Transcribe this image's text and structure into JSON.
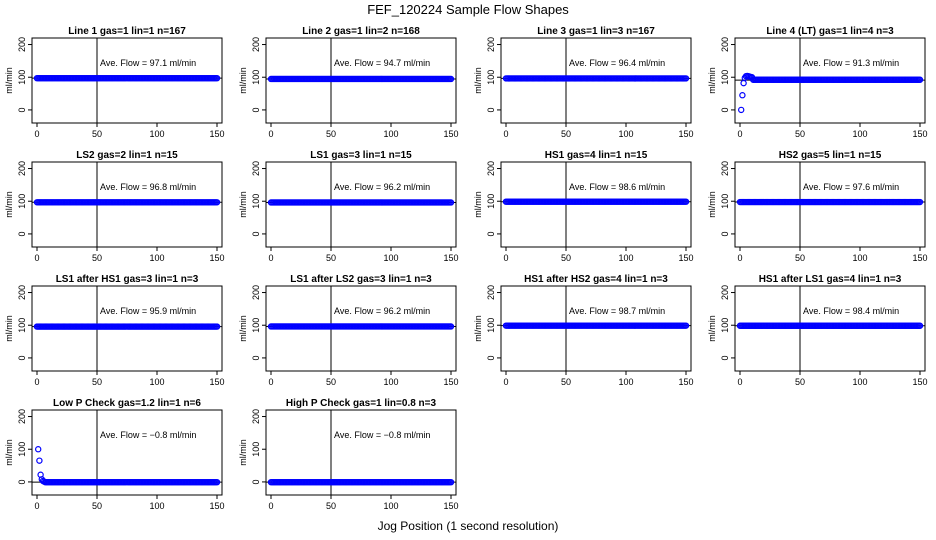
{
  "figure": {
    "title": "FEF_120224  Sample Flow Shapes",
    "xlabel": "Jog Position (1 second resolution)"
  },
  "chart_data": [
    {
      "type": "scatter",
      "title": "Line 1 gas=1 lin=1 n=167",
      "annotation": "Ave. Flow = 97.1  ml/min",
      "ylabel": "ml/min",
      "xlim": [
        0,
        150
      ],
      "ylim": [
        -40,
        220
      ],
      "xticks": [
        0,
        50,
        100,
        150
      ],
      "yticks": [
        0,
        100,
        200
      ],
      "vline": 50,
      "hline": 97.1,
      "level": 97.1,
      "shape": "flat",
      "color": "#0000ff"
    },
    {
      "type": "scatter",
      "title": "Line 2 gas=1 lin=2 n=168",
      "annotation": "Ave. Flow = 94.7  ml/min",
      "ylabel": "ml/min",
      "xlim": [
        0,
        150
      ],
      "ylim": [
        -40,
        220
      ],
      "xticks": [
        0,
        50,
        100,
        150
      ],
      "yticks": [
        0,
        100,
        200
      ],
      "vline": 50,
      "hline": 94.7,
      "level": 94.7,
      "shape": "flat",
      "color": "#0000ff"
    },
    {
      "type": "scatter",
      "title": "Line 3 gas=1 lin=3 n=167",
      "annotation": "Ave. Flow = 96.4  ml/min",
      "ylabel": "ml/min",
      "xlim": [
        0,
        150
      ],
      "ylim": [
        -40,
        220
      ],
      "xticks": [
        0,
        50,
        100,
        150
      ],
      "yticks": [
        0,
        100,
        200
      ],
      "vline": 50,
      "hline": 96.4,
      "level": 96.4,
      "shape": "flat",
      "color": "#0000ff"
    },
    {
      "type": "scatter",
      "title": "Line 4 (LT) gas=1 lin=4 n=3",
      "annotation": "Ave. Flow = 91.3  ml/min",
      "ylabel": "ml/min",
      "xlim": [
        0,
        150
      ],
      "ylim": [
        -40,
        220
      ],
      "xticks": [
        0,
        50,
        100,
        150
      ],
      "yticks": [
        0,
        100,
        200
      ],
      "vline": 50,
      "hline": 91.3,
      "level": 91.3,
      "shape": "startup",
      "color": "#0000ff"
    },
    {
      "type": "scatter",
      "title": "LS2 gas=2 lin=1 n=15",
      "annotation": "Ave. Flow = 96.8  ml/min",
      "ylabel": "ml/min",
      "xlim": [
        0,
        150
      ],
      "ylim": [
        -40,
        220
      ],
      "xticks": [
        0,
        50,
        100,
        150
      ],
      "yticks": [
        0,
        100,
        200
      ],
      "vline": 50,
      "hline": 96.8,
      "level": 96.8,
      "shape": "flat",
      "color": "#0000ff"
    },
    {
      "type": "scatter",
      "title": "LS1 gas=3 lin=1 n=15",
      "annotation": "Ave. Flow = 96.2  ml/min",
      "ylabel": "ml/min",
      "xlim": [
        0,
        150
      ],
      "ylim": [
        -40,
        220
      ],
      "xticks": [
        0,
        50,
        100,
        150
      ],
      "yticks": [
        0,
        100,
        200
      ],
      "vline": 50,
      "hline": 96.2,
      "level": 96.2,
      "shape": "flat",
      "color": "#0000ff"
    },
    {
      "type": "scatter",
      "title": "HS1 gas=4 lin=1 n=15",
      "annotation": "Ave. Flow = 98.6  ml/min",
      "ylabel": "ml/min",
      "xlim": [
        0,
        150
      ],
      "ylim": [
        -40,
        220
      ],
      "xticks": [
        0,
        50,
        100,
        150
      ],
      "yticks": [
        0,
        100,
        200
      ],
      "vline": 50,
      "hline": 98.6,
      "level": 98.6,
      "shape": "flat",
      "color": "#0000ff"
    },
    {
      "type": "scatter",
      "title": "HS2 gas=5 lin=1 n=15",
      "annotation": "Ave. Flow = 97.6  ml/min",
      "ylabel": "ml/min",
      "xlim": [
        0,
        150
      ],
      "ylim": [
        -40,
        220
      ],
      "xticks": [
        0,
        50,
        100,
        150
      ],
      "yticks": [
        0,
        100,
        200
      ],
      "vline": 50,
      "hline": 97.6,
      "level": 97.6,
      "shape": "flat",
      "color": "#0000ff"
    },
    {
      "type": "scatter",
      "title": "LS1 after HS1 gas=3 lin=1 n=3",
      "annotation": "Ave. Flow = 95.9  ml/min",
      "ylabel": "ml/min",
      "xlim": [
        0,
        150
      ],
      "ylim": [
        -40,
        220
      ],
      "xticks": [
        0,
        50,
        100,
        150
      ],
      "yticks": [
        0,
        100,
        200
      ],
      "vline": 50,
      "hline": 95.9,
      "level": 95.9,
      "shape": "flat",
      "color": "#0000ff"
    },
    {
      "type": "scatter",
      "title": "LS1 after LS2 gas=3 lin=1 n=3",
      "annotation": "Ave. Flow = 96.2  ml/min",
      "ylabel": "ml/min",
      "xlim": [
        0,
        150
      ],
      "ylim": [
        -40,
        220
      ],
      "xticks": [
        0,
        50,
        100,
        150
      ],
      "yticks": [
        0,
        100,
        200
      ],
      "vline": 50,
      "hline": 96.2,
      "level": 96.2,
      "shape": "flat",
      "color": "#0000ff"
    },
    {
      "type": "scatter",
      "title": "HS1 after HS2 gas=4 lin=1 n=3",
      "annotation": "Ave. Flow = 98.7  ml/min",
      "ylabel": "ml/min",
      "xlim": [
        0,
        150
      ],
      "ylim": [
        -40,
        220
      ],
      "xticks": [
        0,
        50,
        100,
        150
      ],
      "yticks": [
        0,
        100,
        200
      ],
      "vline": 50,
      "hline": 98.7,
      "level": 98.7,
      "shape": "flat",
      "color": "#0000ff"
    },
    {
      "type": "scatter",
      "title": "HS1 after LS1 gas=4 lin=1 n=3",
      "annotation": "Ave. Flow = 98.4  ml/min",
      "ylabel": "ml/min",
      "xlim": [
        0,
        150
      ],
      "ylim": [
        -40,
        220
      ],
      "xticks": [
        0,
        50,
        100,
        150
      ],
      "yticks": [
        0,
        100,
        200
      ],
      "vline": 50,
      "hline": 98.4,
      "level": 98.4,
      "shape": "flat",
      "color": "#0000ff"
    },
    {
      "type": "scatter",
      "title": "Low P Check gas=1.2 lin=1 n=6",
      "annotation": "Ave. Flow = −0.8  ml/min",
      "ylabel": "ml/min",
      "xlim": [
        0,
        150
      ],
      "ylim": [
        -40,
        220
      ],
      "xticks": [
        0,
        50,
        100,
        150
      ],
      "yticks": [
        0,
        100,
        200
      ],
      "vline": 50,
      "hline": -0.8,
      "level": -0.8,
      "shape": "decay",
      "color": "#0000ff"
    },
    {
      "type": "scatter",
      "title": "High P Check gas=1 lin=0.8 n=3",
      "annotation": "Ave. Flow = −0.8  ml/min",
      "ylabel": "ml/min",
      "xlim": [
        0,
        150
      ],
      "ylim": [
        -40,
        220
      ],
      "xticks": [
        0,
        50,
        100,
        150
      ],
      "yticks": [
        0,
        100,
        200
      ],
      "vline": 50,
      "hline": -0.8,
      "level": -0.8,
      "shape": "flat",
      "color": "#0000ff"
    }
  ]
}
